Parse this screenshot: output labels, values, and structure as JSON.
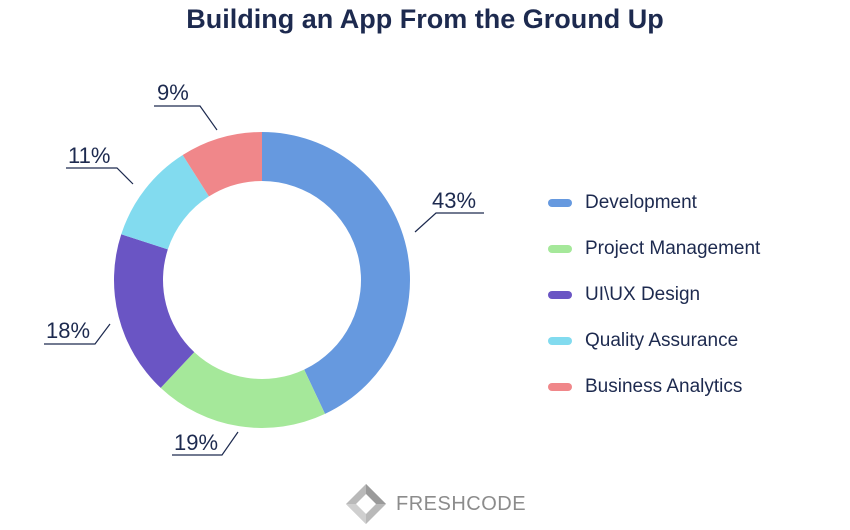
{
  "chart_data": {
    "type": "pie",
    "title": "Building an App From the Ground Up",
    "categories": [
      "Development",
      "Project Management",
      "UI\\UX Design",
      "Quality Assurance",
      "Business Analytics"
    ],
    "values": [
      43,
      19,
      18,
      11,
      9
    ],
    "labels": [
      "43%",
      "19%",
      "18%",
      "11%",
      "9%"
    ],
    "colors": [
      "#6699df",
      "#a5e89a",
      "#6a55c4",
      "#82dbef",
      "#f0878a"
    ],
    "legend_position": "right"
  },
  "brand": {
    "name": "FRESHCODE",
    "logo_icon": "diamond-logo-icon"
  }
}
